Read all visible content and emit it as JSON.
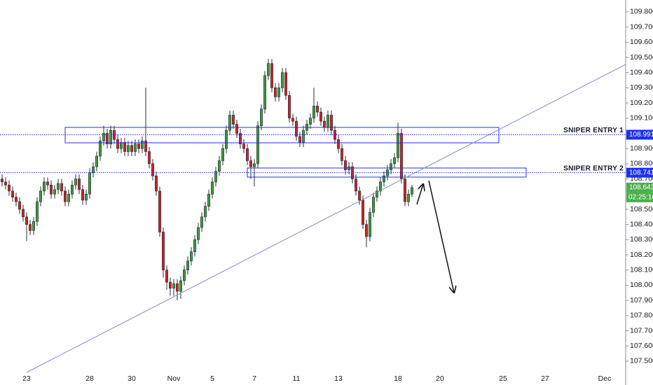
{
  "chart_data": {
    "type": "candlestick",
    "categories": [
      null,
      null,
      null,
      null,
      null,
      null,
      null,
      "23",
      null,
      null,
      null,
      null,
      null,
      null,
      null,
      null,
      null,
      null,
      null,
      null,
      null,
      null,
      null,
      null,
      null,
      "28",
      null,
      null,
      null,
      null,
      null,
      null,
      null,
      null,
      null,
      null,
      null,
      "30",
      null,
      null,
      null,
      null,
      null,
      null,
      null,
      null,
      null,
      null,
      null,
      "Nov",
      null,
      null,
      null,
      null,
      null,
      null,
      null,
      null,
      null,
      null,
      "5",
      null,
      null,
      null,
      null,
      null,
      null,
      null,
      null,
      null,
      null,
      null,
      "7",
      null,
      null,
      null,
      null,
      null,
      null,
      null,
      null,
      null,
      null,
      null,
      "11",
      null,
      null,
      null,
      null,
      null,
      null,
      null,
      null,
      null,
      null,
      null,
      "13",
      null,
      null,
      null,
      null,
      null,
      null,
      null,
      null,
      null,
      null,
      null,
      null,
      null,
      null,
      null,
      null,
      "18",
      null,
      null,
      null,
      null,
      null,
      null,
      null,
      null,
      null,
      null,
      null,
      "20",
      null,
      null,
      null,
      null,
      null,
      null,
      null,
      null,
      null,
      null,
      null,
      null,
      null,
      null,
      null,
      null,
      null,
      "25",
      null,
      null,
      null,
      null,
      null,
      null,
      null,
      null,
      null,
      null,
      null,
      "27",
      null,
      null,
      null,
      null,
      null,
      null,
      null,
      null,
      null,
      null,
      null,
      null,
      null,
      null,
      null,
      null,
      "Dec",
      null,
      null,
      null,
      null,
      null
    ],
    "open": [
      108.7,
      108.68,
      108.66,
      108.62,
      108.58,
      108.55,
      108.5,
      108.45,
      108.4,
      108.36,
      108.42,
      108.55,
      108.62,
      108.68,
      108.66,
      108.6,
      108.63,
      108.67,
      108.62,
      108.55,
      108.6,
      108.66,
      108.7,
      108.63,
      108.56,
      108.6,
      108.74,
      108.78,
      108.85,
      108.95,
      109.0,
      108.93,
      109.02,
      108.96,
      108.9,
      108.94,
      108.88,
      108.92,
      108.88,
      108.93,
      108.9,
      108.95,
      108.88,
      108.8,
      108.72,
      108.62,
      108.35,
      108.1,
      108.02,
      107.98,
      108.01,
      107.96,
      108.03,
      108.1,
      108.16,
      108.22,
      108.3,
      108.38,
      108.45,
      108.52,
      108.6,
      108.68,
      108.75,
      108.82,
      108.9,
      109.02,
      109.12,
      109.06,
      109.0,
      108.93,
      108.9,
      108.82,
      108.78,
      108.8,
      109.05,
      109.16,
      109.38,
      109.46,
      109.3,
      109.24,
      109.3,
      109.4,
      109.25,
      109.1,
      109.08,
      108.98,
      108.94,
      109.02,
      109.06,
      109.1,
      109.18,
      109.14,
      109.08,
      109.04,
      109.12,
      109.02,
      108.96,
      108.9,
      108.82,
      108.76,
      108.78,
      108.7,
      108.62,
      108.56,
      108.4,
      108.32,
      108.48,
      108.58,
      108.62,
      108.68,
      108.72,
      108.76,
      108.8,
      108.84,
      109.0,
      108.7,
      108.55,
      108.6,
      null,
      null,
      null,
      null,
      null,
      null,
      null,
      null,
      null,
      null,
      null,
      null,
      null,
      null,
      null,
      null,
      null,
      null,
      null,
      null,
      null,
      null,
      null,
      null,
      null,
      null,
      null,
      null,
      null,
      null,
      null,
      null,
      null,
      null,
      null,
      null,
      null,
      null,
      null,
      null,
      null,
      null,
      null,
      null,
      null,
      null,
      null,
      null,
      null,
      null,
      null,
      null,
      null,
      null,
      null,
      null,
      null,
      null,
      null,
      null
    ],
    "high": [
      108.73,
      108.71,
      108.69,
      108.65,
      108.61,
      108.58,
      108.53,
      108.48,
      108.43,
      108.45,
      108.58,
      108.65,
      108.71,
      108.71,
      108.69,
      108.66,
      108.7,
      108.7,
      108.65,
      108.63,
      108.69,
      108.73,
      108.73,
      108.66,
      108.63,
      108.77,
      108.81,
      108.88,
      108.98,
      109.05,
      109.03,
      109.05,
      109.05,
      108.99,
      108.97,
      108.97,
      108.95,
      108.95,
      108.96,
      108.96,
      108.98,
      109.3,
      108.91,
      108.83,
      108.75,
      108.65,
      108.38,
      108.13,
      108.05,
      108.04,
      108.04,
      108.06,
      108.13,
      108.19,
      108.25,
      108.33,
      108.41,
      108.48,
      108.55,
      108.63,
      108.71,
      108.78,
      108.85,
      108.93,
      109.05,
      109.15,
      109.15,
      109.09,
      109.03,
      108.96,
      108.93,
      108.85,
      108.83,
      109.08,
      109.19,
      109.41,
      109.49,
      109.49,
      109.33,
      109.33,
      109.43,
      109.43,
      109.28,
      109.13,
      109.11,
      109.01,
      109.05,
      109.09,
      109.13,
      109.3,
      109.21,
      109.17,
      109.11,
      109.15,
      109.15,
      109.05,
      108.99,
      108.93,
      108.85,
      108.81,
      108.81,
      108.73,
      108.65,
      108.59,
      108.43,
      108.51,
      108.61,
      108.65,
      108.71,
      108.75,
      108.79,
      108.83,
      108.87,
      109.07,
      109.03,
      108.73,
      108.63,
      108.66,
      null,
      null,
      null,
      null,
      null,
      null,
      null,
      null,
      null,
      null,
      null,
      null,
      null,
      null,
      null,
      null,
      null,
      null,
      null,
      null,
      null,
      null,
      null,
      null,
      null,
      null,
      null,
      null,
      null,
      null,
      null,
      null,
      null,
      null,
      null,
      null,
      null,
      null,
      null,
      null,
      null,
      null,
      null,
      null,
      null,
      null,
      null,
      null,
      null,
      null,
      null,
      null,
      null,
      null,
      null,
      null,
      null,
      null,
      null,
      null
    ],
    "low": [
      108.65,
      108.63,
      108.59,
      108.55,
      108.52,
      108.47,
      108.42,
      108.29,
      108.33,
      108.33,
      108.39,
      108.52,
      108.59,
      108.63,
      108.57,
      108.57,
      108.6,
      108.59,
      108.52,
      108.52,
      108.57,
      108.63,
      108.6,
      108.53,
      108.53,
      108.57,
      108.71,
      108.75,
      108.82,
      108.92,
      108.9,
      108.9,
      108.93,
      108.87,
      108.87,
      108.85,
      108.85,
      108.85,
      108.85,
      108.87,
      108.87,
      108.85,
      108.77,
      108.69,
      108.59,
      108.32,
      108.05,
      107.97,
      107.93,
      107.93,
      107.9,
      107.91,
      108.0,
      108.07,
      108.13,
      108.19,
      108.27,
      108.35,
      108.42,
      108.49,
      108.57,
      108.65,
      108.72,
      108.79,
      108.87,
      108.99,
      109.03,
      108.97,
      108.9,
      108.87,
      108.79,
      108.7,
      108.65,
      108.77,
      109.02,
      109.13,
      109.35,
      109.27,
      109.21,
      109.21,
      109.27,
      109.22,
      109.07,
      109.05,
      108.95,
      108.91,
      108.91,
      108.99,
      109.03,
      109.07,
      109.11,
      109.05,
      109.01,
      109.01,
      108.99,
      108.93,
      108.87,
      108.79,
      108.73,
      108.73,
      108.67,
      108.59,
      108.53,
      108.37,
      108.25,
      108.29,
      108.45,
      108.55,
      108.59,
      108.65,
      108.69,
      108.73,
      108.77,
      108.81,
      108.67,
      108.52,
      108.52,
      108.58,
      null,
      null,
      null,
      null,
      null,
      null,
      null,
      null,
      null,
      null,
      null,
      null,
      null,
      null,
      null,
      null,
      null,
      null,
      null,
      null,
      null,
      null,
      null,
      null,
      null,
      null,
      null,
      null,
      null,
      null,
      null,
      null,
      null,
      null,
      null,
      null,
      null,
      null,
      null,
      null,
      null,
      null,
      null,
      null,
      null,
      null,
      null,
      null,
      null,
      null,
      null,
      null,
      null,
      null,
      null,
      null,
      null,
      null,
      null,
      null
    ],
    "close": [
      108.68,
      108.66,
      108.62,
      108.58,
      108.55,
      108.5,
      108.45,
      108.4,
      108.36,
      108.42,
      108.55,
      108.62,
      108.68,
      108.66,
      108.6,
      108.63,
      108.67,
      108.62,
      108.55,
      108.6,
      108.66,
      108.7,
      108.63,
      108.56,
      108.6,
      108.74,
      108.78,
      108.85,
      108.95,
      109.0,
      108.93,
      109.02,
      108.96,
      108.9,
      108.94,
      108.88,
      108.92,
      108.88,
      108.93,
      108.9,
      108.95,
      108.88,
      108.8,
      108.72,
      108.62,
      108.35,
      108.1,
      108.02,
      107.98,
      108.01,
      107.96,
      108.03,
      108.1,
      108.16,
      108.22,
      108.3,
      108.38,
      108.45,
      108.52,
      108.6,
      108.68,
      108.75,
      108.82,
      108.9,
      109.02,
      109.12,
      109.06,
      109.0,
      108.93,
      108.9,
      108.82,
      108.78,
      108.8,
      109.05,
      109.16,
      109.38,
      109.46,
      109.3,
      109.24,
      109.3,
      109.4,
      109.25,
      109.1,
      109.08,
      108.98,
      108.94,
      109.02,
      109.06,
      109.1,
      109.18,
      109.14,
      109.08,
      109.04,
      109.12,
      109.02,
      108.96,
      108.9,
      108.82,
      108.76,
      108.78,
      108.7,
      108.62,
      108.56,
      108.4,
      108.32,
      108.48,
      108.58,
      108.62,
      108.68,
      108.72,
      108.76,
      108.8,
      108.84,
      109.0,
      108.7,
      108.55,
      108.6,
      108.643,
      null,
      null,
      null,
      null,
      null,
      null,
      null,
      null,
      null,
      null,
      null,
      null,
      null,
      null,
      null,
      null,
      null,
      null,
      null,
      null,
      null,
      null,
      null,
      null,
      null,
      null,
      null,
      null,
      null,
      null,
      null,
      null,
      null,
      null,
      null,
      null,
      null,
      null,
      null,
      null,
      null,
      null,
      null,
      null,
      null,
      null,
      null,
      null,
      null,
      null,
      null,
      null,
      null,
      null,
      null,
      null,
      null,
      null,
      null,
      null
    ],
    "up_color": "#3f9b3f",
    "down_color": "#c62828",
    "ylim": [
      107.343,
      109.878
    ],
    "yticks": [
      {
        "value": 107.5,
        "label": "107.500"
      },
      {
        "value": 107.6,
        "label": "107.600"
      },
      {
        "value": 107.7,
        "label": "107.700"
      },
      {
        "value": 107.8,
        "label": "107.800"
      },
      {
        "value": 107.9,
        "label": "107.900"
      },
      {
        "value": 108.0,
        "label": "108.000"
      },
      {
        "value": 108.1,
        "label": "108.100"
      },
      {
        "value": 108.2,
        "label": "108.200"
      },
      {
        "value": 108.3,
        "label": "108.300"
      },
      {
        "value": 108.4,
        "label": "108.400"
      },
      {
        "value": 108.5,
        "label": "108.500"
      },
      {
        "value": 108.7,
        "label": "108.700"
      },
      {
        "value": 108.8,
        "label": "108.800"
      },
      {
        "value": 108.9,
        "label": "108.900"
      },
      {
        "value": 109.1,
        "label": "109.100"
      },
      {
        "value": 109.2,
        "label": "109.200"
      },
      {
        "value": 109.3,
        "label": "109.300"
      },
      {
        "value": 109.4,
        "label": "109.400"
      },
      {
        "value": 109.5,
        "label": "109.500"
      },
      {
        "value": 109.6,
        "label": "109.600"
      },
      {
        "value": 109.7,
        "label": "109.700"
      },
      {
        "value": 109.8,
        "label": "109.800"
      }
    ],
    "levels": [
      {
        "name": "SNIPER ENTRY 1",
        "value": 108.991,
        "color": "#1f2ff0"
      },
      {
        "name": "SNIPER ENTRY 2",
        "value": 108.741,
        "color": "#1f2ff0"
      }
    ],
    "last_color": "#4caf50",
    "countdown": "02:25:16"
  }
}
